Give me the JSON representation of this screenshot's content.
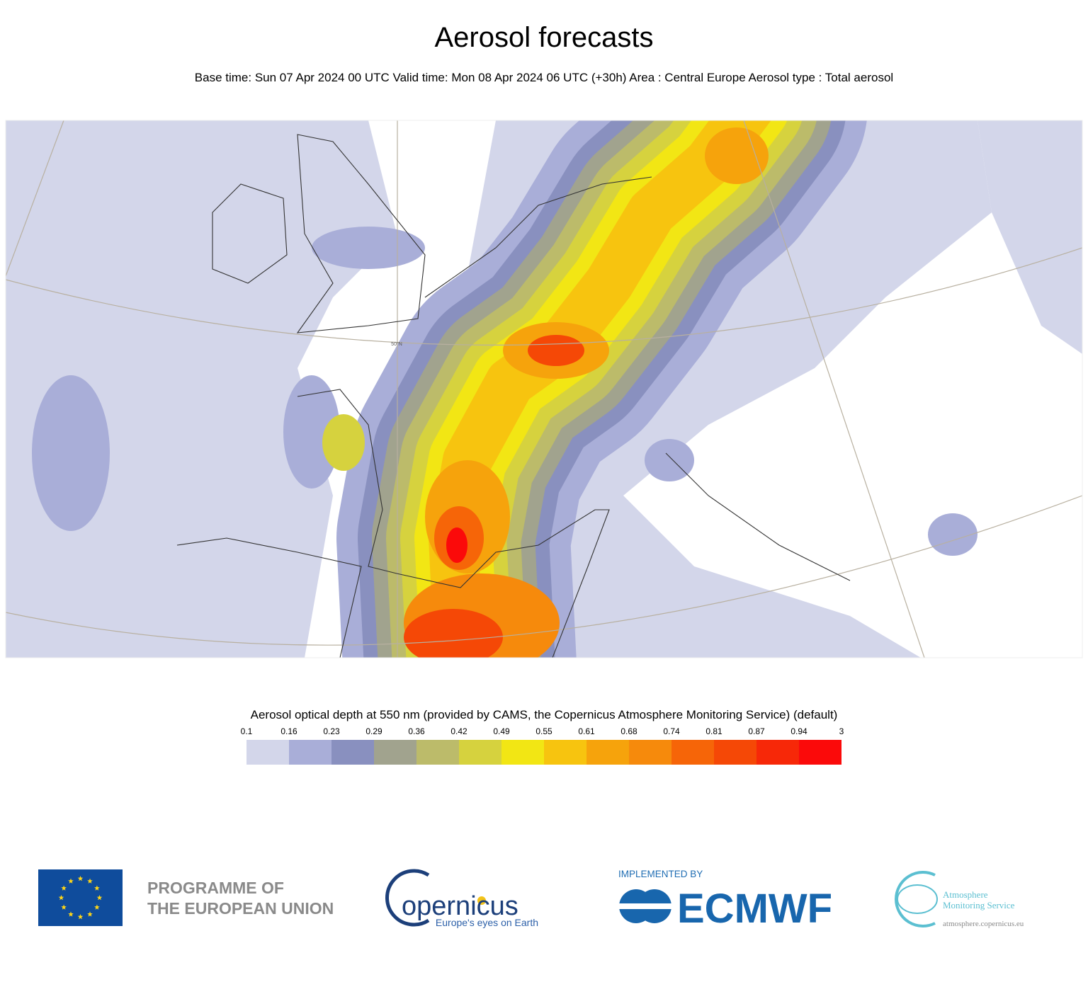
{
  "title": "Aerosol forecasts",
  "subtitle": "Base time: Sun 07 Apr 2024 00 UTC Valid time: Mon 08 Apr 2024 06 UTC (+30h) Area : Central Europe Aerosol type : Total aerosol",
  "map": {
    "parallel_label": "50°N"
  },
  "legend": {
    "title": "Aerosol optical depth at 550 nm (provided by CAMS, the Copernicus Atmosphere Monitoring Service) (default)",
    "ticks": [
      "0.1",
      "0.16",
      "0.23",
      "0.29",
      "0.36",
      "0.42",
      "0.49",
      "0.55",
      "0.61",
      "0.68",
      "0.74",
      "0.81",
      "0.87",
      "0.94",
      "3"
    ],
    "colors": [
      "#d3d6ea",
      "#a9aed8",
      "#8990bf",
      "#a1a38e",
      "#bcbb6a",
      "#d6d23e",
      "#f2e614",
      "#f7c40f",
      "#f6a30c",
      "#f68a0c",
      "#f66508",
      "#f54806",
      "#f72808",
      "#fb0a0a"
    ]
  },
  "logos": {
    "eu_line1": "PROGRAMME OF",
    "eu_line2": "THE EUROPEAN UNION",
    "copernicus": "opernicus",
    "copernicus_tagline": "Europe's eyes on Earth",
    "implemented_by": "IMPLEMENTED BY",
    "ecmwf": "ECMWF",
    "ams_line1": "Atmosphere",
    "ams_line2": "Monitoring Service",
    "ams_url": "atmosphere.copernicus.eu"
  }
}
